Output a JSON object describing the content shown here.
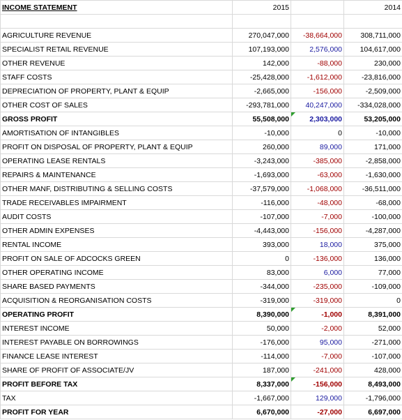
{
  "header": {
    "title": "INCOME STATEMENT",
    "year_a": "2015",
    "year_b": "2014"
  },
  "table": {
    "rows": [
      {
        "label": "AGRICULTURE REVENUE",
        "a": "270,047,000",
        "diff": "-38,664,000",
        "b": "308,711,000",
        "bold": false
      },
      {
        "label": "SPECIALIST RETAIL REVENUE",
        "a": "107,193,000",
        "diff": "2,576,000",
        "b": "104,617,000",
        "bold": false
      },
      {
        "label": "OTHER REVENUE",
        "a": "142,000",
        "diff": "-88,000",
        "b": "230,000",
        "bold": false
      },
      {
        "label": "STAFF COSTS",
        "a": "-25,428,000",
        "diff": "-1,612,000",
        "b": "-23,816,000",
        "bold": false
      },
      {
        "label": "DEPRECIATION OF PROPERTY, PLANT & EQUIP",
        "a": "-2,665,000",
        "diff": "-156,000",
        "b": "-2,509,000",
        "bold": false
      },
      {
        "label": "OTHER COST OF SALES",
        "a": "-293,781,000",
        "diff": "40,247,000",
        "b": "-334,028,000",
        "bold": false
      },
      {
        "label": "GROSS PROFIT",
        "a": "55,508,000",
        "diff": "2,303,000",
        "b": "53,205,000",
        "bold": true
      },
      {
        "label": "AMORTISATION OF INTANGIBLES",
        "a": "-10,000",
        "diff": "0",
        "b": "-10,000",
        "bold": false
      },
      {
        "label": "PROFIT ON DISPOSAL OF PROPERTY, PLANT & EQUIP",
        "a": "260,000",
        "diff": "89,000",
        "b": "171,000",
        "bold": false
      },
      {
        "label": "OPERATING LEASE RENTALS",
        "a": "-3,243,000",
        "diff": "-385,000",
        "b": "-2,858,000",
        "bold": false
      },
      {
        "label": "REPAIRS & MAINTENANCE",
        "a": "-1,693,000",
        "diff": "-63,000",
        "b": "-1,630,000",
        "bold": false
      },
      {
        "label": "OTHER MANF, DISTRIBUTING & SELLING COSTS",
        "a": "-37,579,000",
        "diff": "-1,068,000",
        "b": "-36,511,000",
        "bold": false
      },
      {
        "label": "TRADE RECEIVABLES IMPAIRMENT",
        "a": "-116,000",
        "diff": "-48,000",
        "b": "-68,000",
        "bold": false
      },
      {
        "label": "AUDIT COSTS",
        "a": "-107,000",
        "diff": "-7,000",
        "b": "-100,000",
        "bold": false
      },
      {
        "label": "OTHER ADMIN EXPENSES",
        "a": "-4,443,000",
        "diff": "-156,000",
        "b": "-4,287,000",
        "bold": false
      },
      {
        "label": "RENTAL INCOME",
        "a": "393,000",
        "diff": "18,000",
        "b": "375,000",
        "bold": false
      },
      {
        "label": "PROFIT ON SALE OF ADCOCKS GREEN",
        "a": "0",
        "diff": "-136,000",
        "b": "136,000",
        "bold": false
      },
      {
        "label": "OTHER OPERATING INCOME",
        "a": "83,000",
        "diff": "6,000",
        "b": "77,000",
        "bold": false
      },
      {
        "label": "SHARE BASED PAYMENTS",
        "a": "-344,000",
        "diff": "-235,000",
        "b": "-109,000",
        "bold": false
      },
      {
        "label": "ACQUISITION & REORGANISATION COSTS",
        "a": "-319,000",
        "diff": "-319,000",
        "b": "0",
        "bold": false
      },
      {
        "label": "OPERATING PROFIT",
        "a": "8,390,000",
        "diff": "-1,000",
        "b": "8,391,000",
        "bold": true
      },
      {
        "label": "INTEREST INCOME",
        "a": "50,000",
        "diff": "-2,000",
        "b": "52,000",
        "bold": false
      },
      {
        "label": "INTEREST PAYABLE ON BORROWINGS",
        "a": "-176,000",
        "diff": "95,000",
        "b": "-271,000",
        "bold": false
      },
      {
        "label": "FINANCE LEASE INTEREST",
        "a": "-114,000",
        "diff": "-7,000",
        "b": "-107,000",
        "bold": false
      },
      {
        "label": "SHARE OF PROFIT OF ASSOCIATE/JV",
        "a": "187,000",
        "diff": "-241,000",
        "b": "428,000",
        "bold": false
      },
      {
        "label": "PROFIT BEFORE TAX",
        "a": "8,337,000",
        "diff": "-156,000",
        "b": "8,493,000",
        "bold": true
      },
      {
        "label": "TAX",
        "a": "-1,667,000",
        "diff": "129,000",
        "b": "-1,796,000",
        "bold": false
      },
      {
        "label": "PROFIT FOR YEAR",
        "a": "6,670,000",
        "diff": "-27,000",
        "b": "6,697,000",
        "bold": true
      }
    ]
  }
}
